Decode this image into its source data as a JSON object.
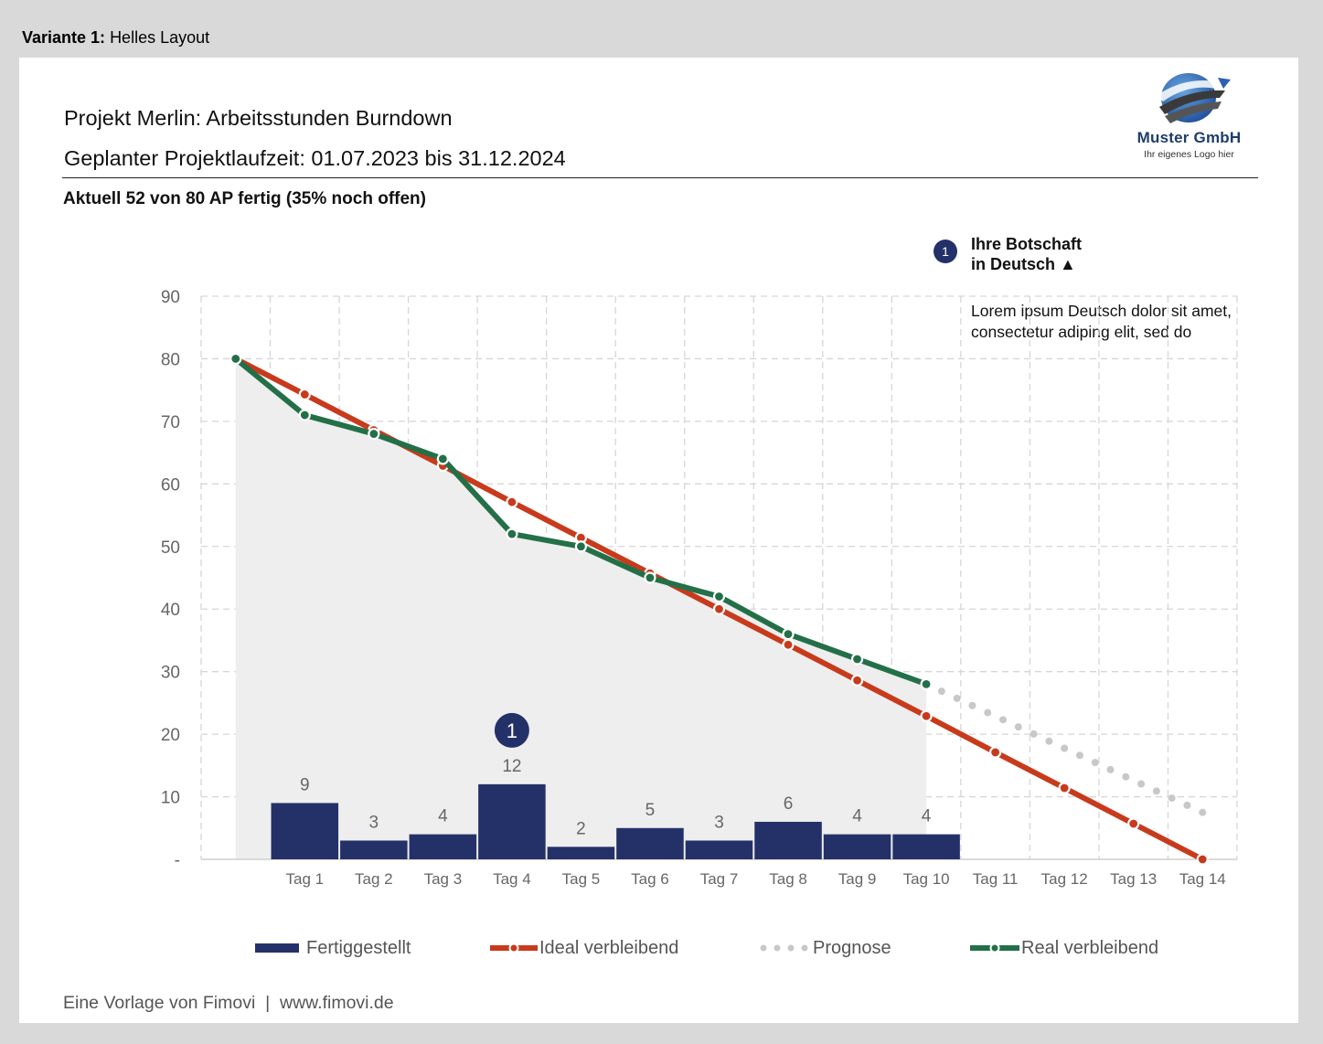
{
  "header": {
    "variant_label": "Variante 1:",
    "variant_name": "Helles Layout"
  },
  "report": {
    "title": "Projekt Merlin: Arbeitsstunden Burndown",
    "subtitle": "Geplanter Projektlaufzeit: 01.07.2023 bis 31.12.2024",
    "status": "Aktuell 52 von 80 AP fertig (35% noch offen)"
  },
  "logo": {
    "name": "Muster GmbH",
    "tagline": "Ihr eigenes Logo hier",
    "icon": "globe-swoosh-logo-icon"
  },
  "message": {
    "badge": "1",
    "title": "Ihre Botschaft\nin Deutsch ▲",
    "body": "Lorem ipsum Deutsch dolor sit amet, consectetur adiping elit, sed do"
  },
  "chart_data": {
    "type": "bar",
    "categories": [
      "",
      "Tag 1",
      "Tag 2",
      "Tag 3",
      "Tag 4",
      "Tag 5",
      "Tag 6",
      "Tag 7",
      "Tag 8",
      "Tag 9",
      "Tag 10",
      "Tag 11",
      "Tag 12",
      "Tag 13",
      "Tag 14"
    ],
    "ylim": [
      0,
      90
    ],
    "yticks": [
      {
        "value": 0,
        "label": "-"
      },
      {
        "value": 10,
        "label": "10"
      },
      {
        "value": 20,
        "label": "20"
      },
      {
        "value": 30,
        "label": "30"
      },
      {
        "value": 40,
        "label": "40"
      },
      {
        "value": 50,
        "label": "50"
      },
      {
        "value": 60,
        "label": "60"
      },
      {
        "value": 70,
        "label": "70"
      },
      {
        "value": 80,
        "label": "80"
      },
      {
        "value": 90,
        "label": "90"
      }
    ],
    "grid": true,
    "legend_position": "bottom",
    "series": [
      {
        "name": "Fertiggestellt",
        "kind": "bar",
        "color": "#243169",
        "values": [
          null,
          9,
          3,
          4,
          12,
          2,
          5,
          3,
          6,
          4,
          4,
          null,
          null,
          null,
          null
        ]
      },
      {
        "name": "Ideal verbleibend",
        "kind": "line",
        "color": "#c83a1c",
        "values": [
          80,
          74.3,
          68.6,
          62.9,
          57.1,
          51.4,
          45.7,
          40,
          34.3,
          28.6,
          22.9,
          17.1,
          11.4,
          5.7,
          0
        ]
      },
      {
        "name": "Prognose",
        "kind": "dotted-line",
        "color": "#c8c8c8",
        "values": [
          null,
          null,
          null,
          null,
          null,
          null,
          null,
          null,
          null,
          null,
          28,
          null,
          null,
          null,
          7.5
        ]
      },
      {
        "name": "Real verbleibend",
        "kind": "line",
        "color": "#237048",
        "values": [
          80,
          71,
          68,
          64,
          52,
          50,
          45,
          42,
          36,
          32,
          28,
          null,
          null,
          null,
          null
        ]
      }
    ],
    "annotations": [
      {
        "label": "1",
        "x": "Tag 4",
        "y": 25
      }
    ]
  },
  "footer": {
    "text": "Eine Vorlage von Fimovi  |  www.fimovi.de"
  }
}
